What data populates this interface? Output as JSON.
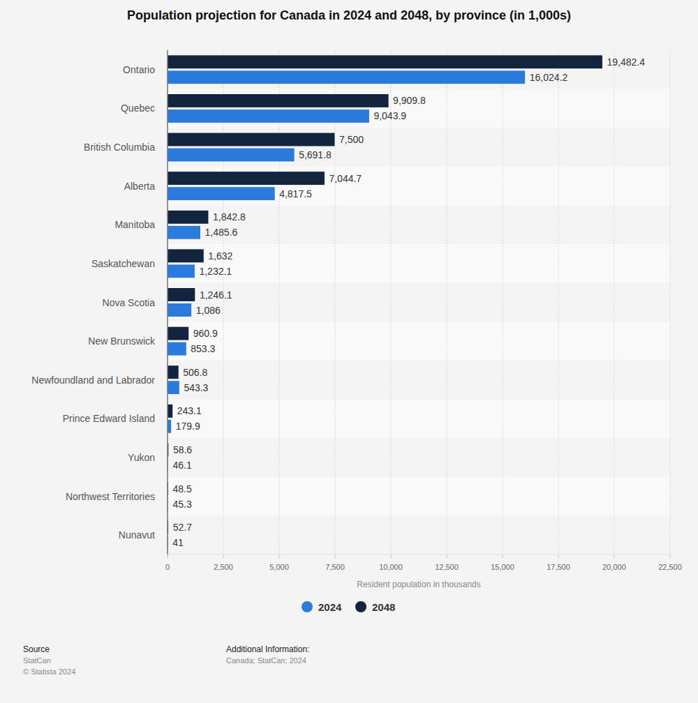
{
  "chart_data": {
    "type": "bar",
    "orientation": "horizontal",
    "title": "Population projection for Canada in 2024 and 2048, by province (in 1,000s)",
    "xlabel": "Resident population in thousands",
    "categories": [
      "Ontario",
      "Quebec",
      "British Columbia",
      "Alberta",
      "Manitoba",
      "Saskatchewan",
      "Nova Scotia",
      "New Brunswick",
      "Newfoundland and Labrador",
      "Prince Edward Island",
      "Yukon",
      "Northwest Territories",
      "Nunavut"
    ],
    "series": [
      {
        "name": "2024",
        "color": "#2b7bdc",
        "values": [
          16024.2,
          9043.9,
          5691.8,
          4817.5,
          1485.6,
          1232.1,
          1086,
          853.3,
          543.3,
          179.9,
          46.1,
          45.3,
          41
        ],
        "value_labels": [
          "16,024.2",
          "9,043.9",
          "5,691.8",
          "4,817.5",
          "1,485.6",
          "1,232.1",
          "1,086",
          "853.3",
          "543.3",
          "179.9",
          "46.1",
          "45.3",
          "41"
        ]
      },
      {
        "name": "2048",
        "color": "#13253e",
        "values": [
          19482.4,
          9909.8,
          7500,
          7044.7,
          1842.8,
          1632,
          1246.1,
          960.9,
          506.8,
          243.1,
          58.6,
          48.5,
          52.7
        ],
        "value_labels": [
          "19,482.4",
          "9,909.8",
          "7,500",
          "7,044.7",
          "1,842.8",
          "1,632",
          "1,246.1",
          "960.9",
          "506.8",
          "243.1",
          "58.6",
          "48.5",
          "52.7"
        ]
      }
    ],
    "xlim": [
      0,
      22500
    ],
    "xticks": [
      0,
      {
        "value": 2500,
        "label": "2,500"
      },
      {
        "value": 5000,
        "label": "5,000"
      },
      {
        "value": 7500,
        "label": "7,500"
      },
      {
        "value": 10000,
        "label": "10,000"
      },
      {
        "value": 12500,
        "label": "12,500"
      },
      {
        "value": 15000,
        "label": "15,000"
      },
      {
        "value": 17500,
        "label": "17,500"
      },
      {
        "value": 20000,
        "label": "20,000"
      },
      {
        "value": 22500,
        "label": "22,500"
      }
    ],
    "grid": true,
    "data_labels": true,
    "legend": "bottom"
  },
  "footer": {
    "source_heading": "Source",
    "source": "StatCan",
    "copyright": "© Statista 2024",
    "info_heading": "Additional Information:",
    "info": "Canada; StatCan; 2024"
  }
}
